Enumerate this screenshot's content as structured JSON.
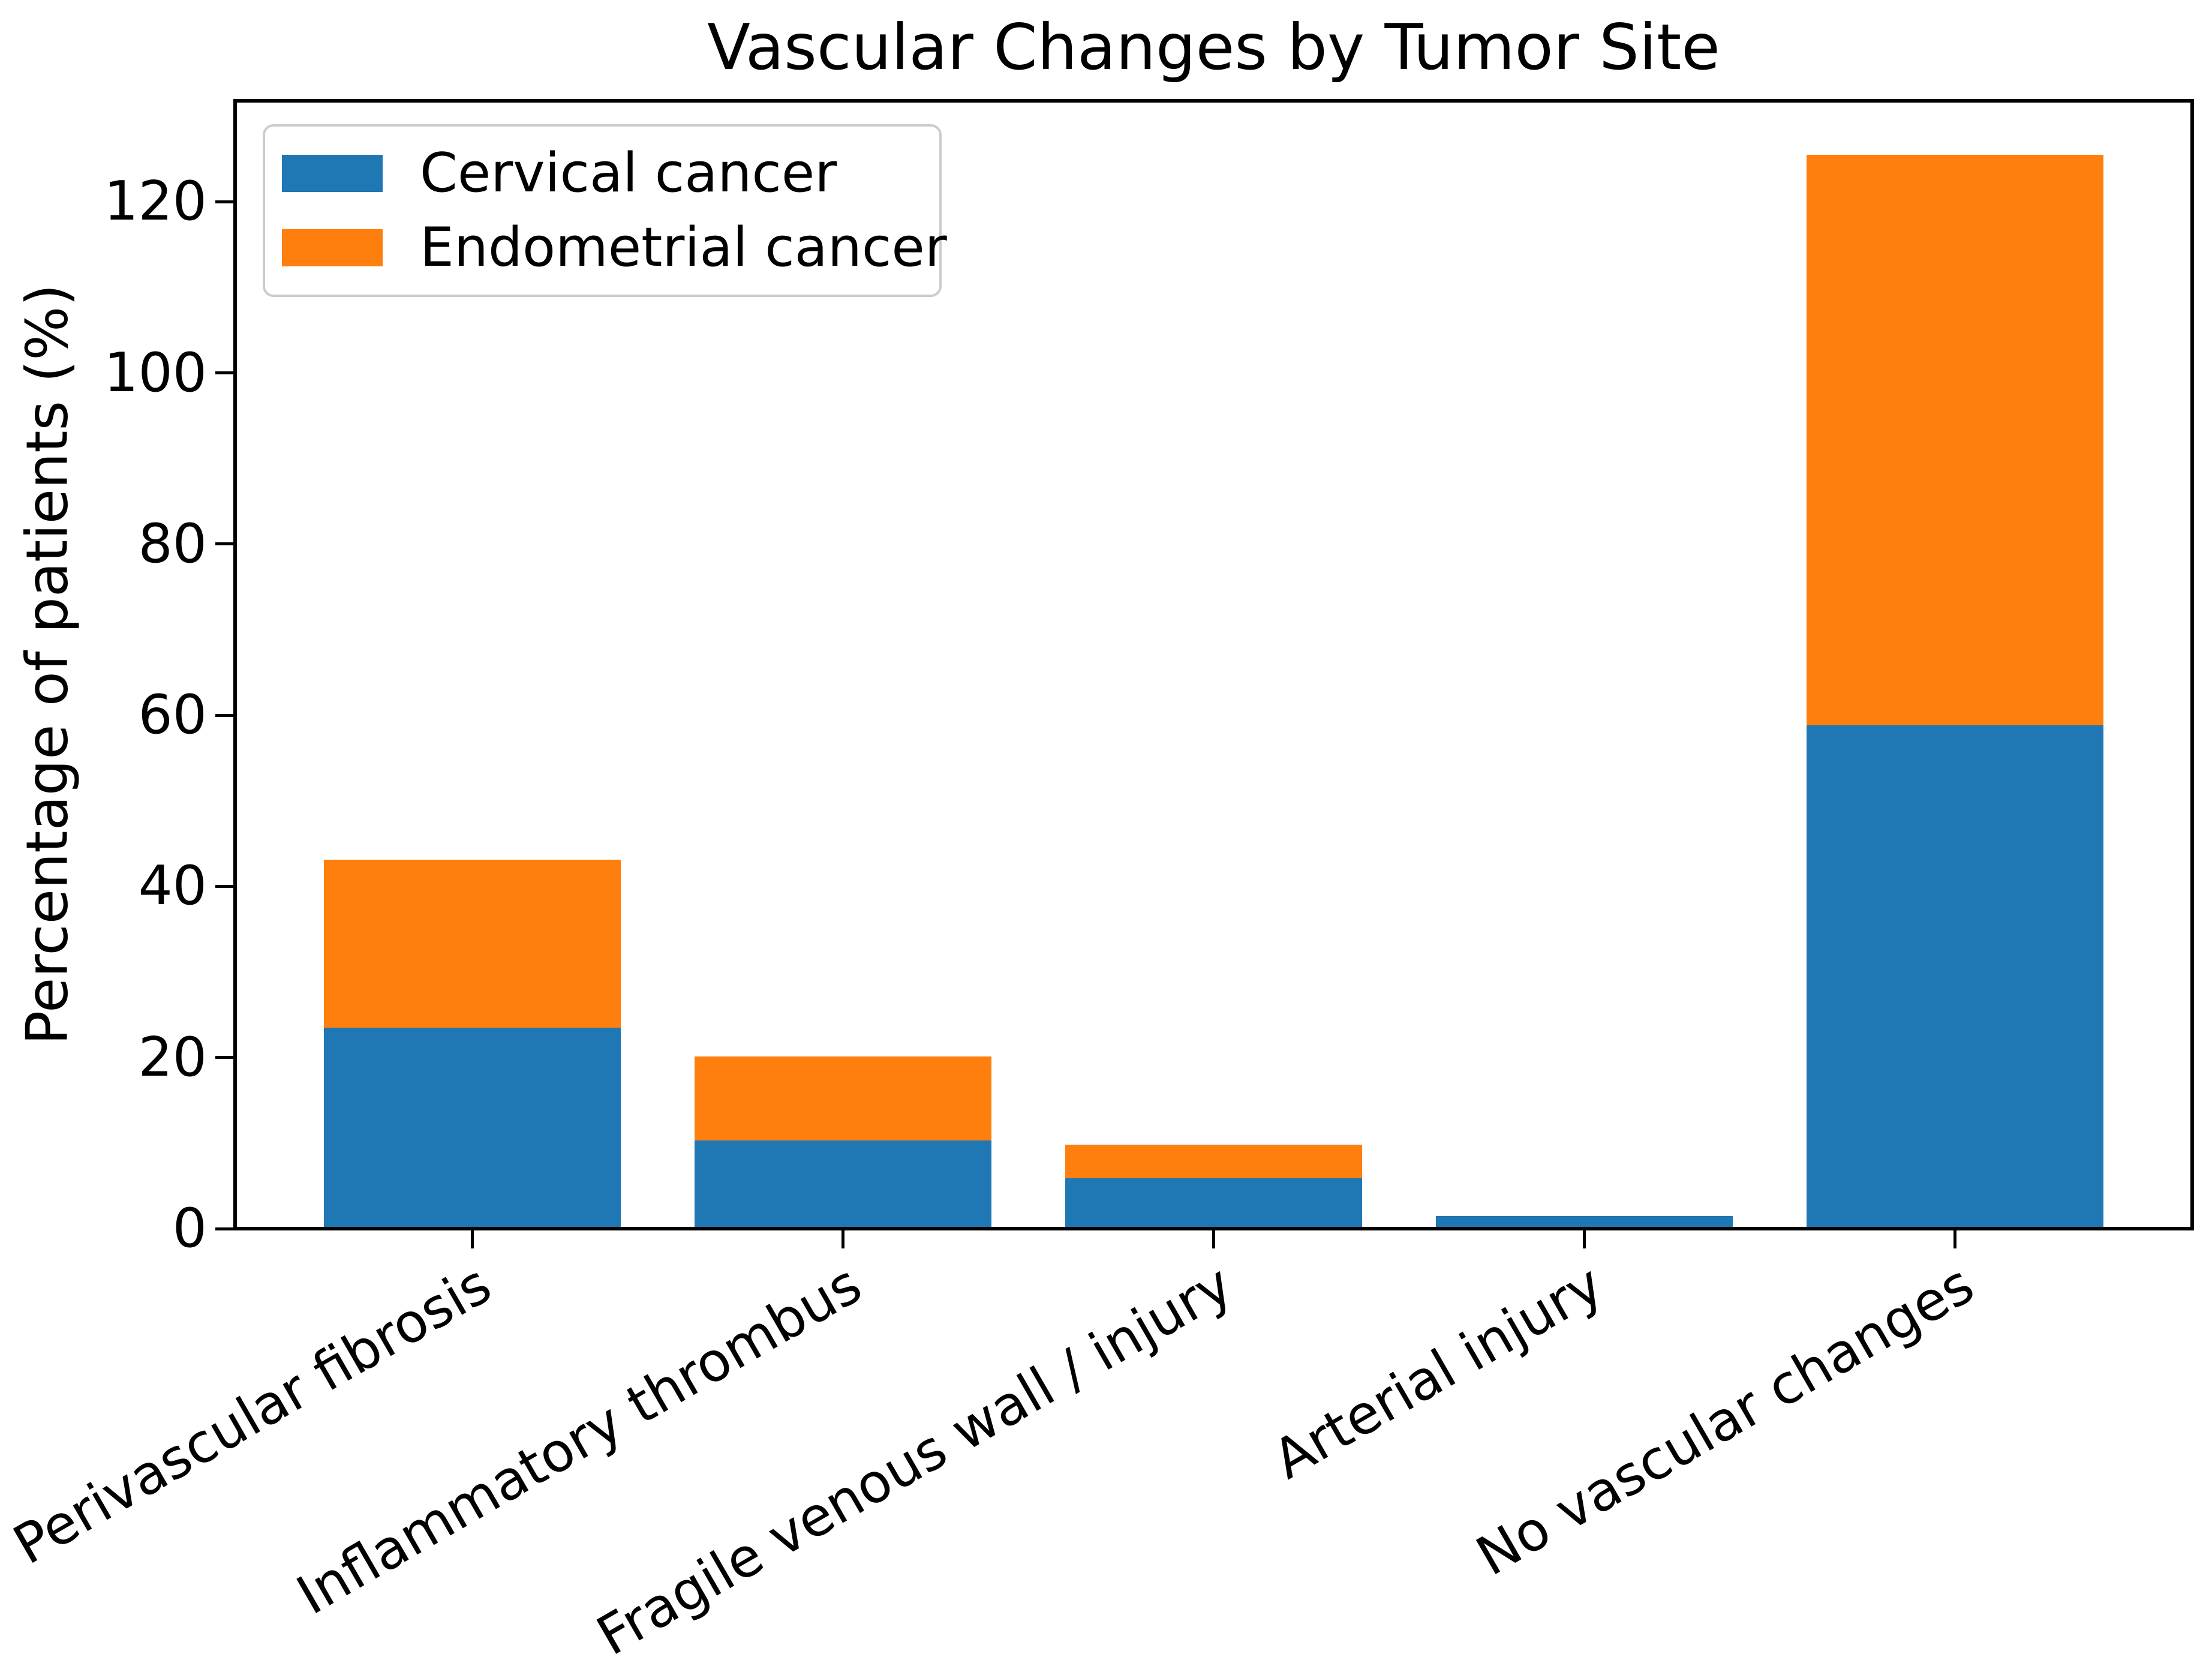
{
  "chart_data": {
    "type": "bar",
    "stacked": true,
    "title": "Vascular Changes by Tumor Site",
    "xlabel": "",
    "ylabel": "Percentage of patients (%)",
    "categories": [
      "Perivascular fibrosis",
      "Inflammatory thrombus",
      "Fragile venous wall / injury",
      "Arterial injury",
      "No vascular changes"
    ],
    "series": [
      {
        "name": "Cervical cancer",
        "color": "#1f77b4",
        "values": [
          23.5,
          10.3,
          5.9,
          1.5,
          58.8
        ]
      },
      {
        "name": "Endometrial cancer",
        "color": "#ff7f0e",
        "values": [
          19.6,
          9.8,
          3.9,
          0.0,
          66.7
        ]
      }
    ],
    "stack_totals": [
      43.1,
      20.1,
      9.8,
      1.5,
      125.5
    ],
    "yticks": [
      0,
      20,
      40,
      60,
      80,
      100,
      120
    ],
    "ylim": [
      0,
      131.8
    ],
    "x_tick_rotation_deg": 30,
    "grid": false,
    "legend": {
      "position": "upper left",
      "entries": [
        "Cervical cancer",
        "Endometrial cancer"
      ]
    },
    "axis_color": "#000000",
    "background_color": "#ffffff"
  }
}
